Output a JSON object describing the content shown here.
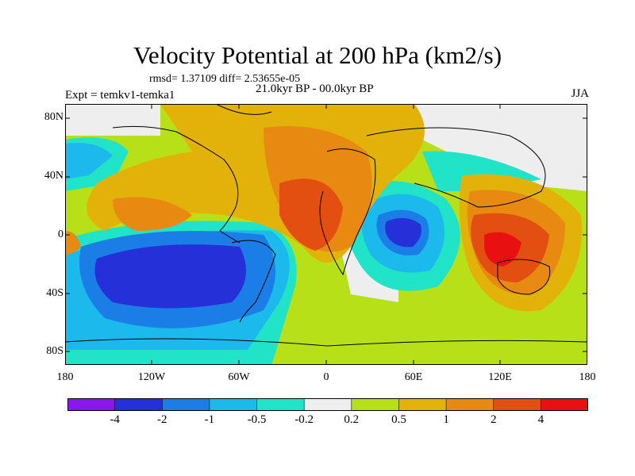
{
  "title": "Velocity Potential at 200 hPa (km2/s)",
  "stats": "rmsd= 1.37109 diff= 2.53655e-05",
  "experiment": "Expt = temkv1-temka1",
  "period": "21.0kyr BP - 00.0kyr BP",
  "season": "JJA",
  "lat_labels": [
    "80N",
    "40N",
    "0",
    "40S",
    "80S"
  ],
  "lon_labels": [
    "180",
    "120W",
    "60W",
    "0",
    "60E",
    "120E",
    "180"
  ],
  "colorbar": {
    "colors": [
      "#8a18ee",
      "#2530d8",
      "#1a7ee6",
      "#1bb9ec",
      "#20e3c8",
      "#eeeeee",
      "#b8e018",
      "#e3b20a",
      "#e88a12",
      "#e24f10",
      "#e81010"
    ],
    "labels": [
      "-4",
      "-2",
      "-1",
      "-0.5",
      "-0.2",
      "0.2",
      "0.5",
      "1",
      "2",
      "4"
    ]
  },
  "icons": {
    "map": "world-coastline-map"
  }
}
